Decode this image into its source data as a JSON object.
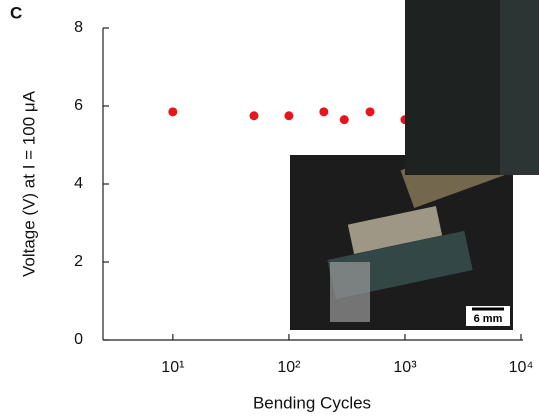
{
  "chart_data": {
    "type": "scatter",
    "panel_label": "C",
    "xlabel": "Bending Cycles",
    "ylabel": "Voltage (V) at I = 100 μA",
    "x": [
      10,
      50,
      100,
      200,
      300,
      500,
      1000
    ],
    "series": [
      {
        "color": "#e8141c",
        "values": [
          5.85,
          5.75,
          5.75,
          5.85,
          5.65,
          5.85,
          5.65
        ]
      }
    ],
    "xscale": "log",
    "xlim": [
      2.5,
      10000
    ],
    "xticks": [
      {
        "value": 10,
        "label": "10¹"
      },
      {
        "value": 100,
        "label": "10²"
      },
      {
        "value": 1000,
        "label": "10³"
      },
      {
        "value": 10000,
        "label": "10⁴"
      }
    ],
    "ylim": [
      0,
      8
    ],
    "yticks": [
      0,
      2,
      4,
      6,
      8
    ],
    "annotation": "6 mm"
  }
}
